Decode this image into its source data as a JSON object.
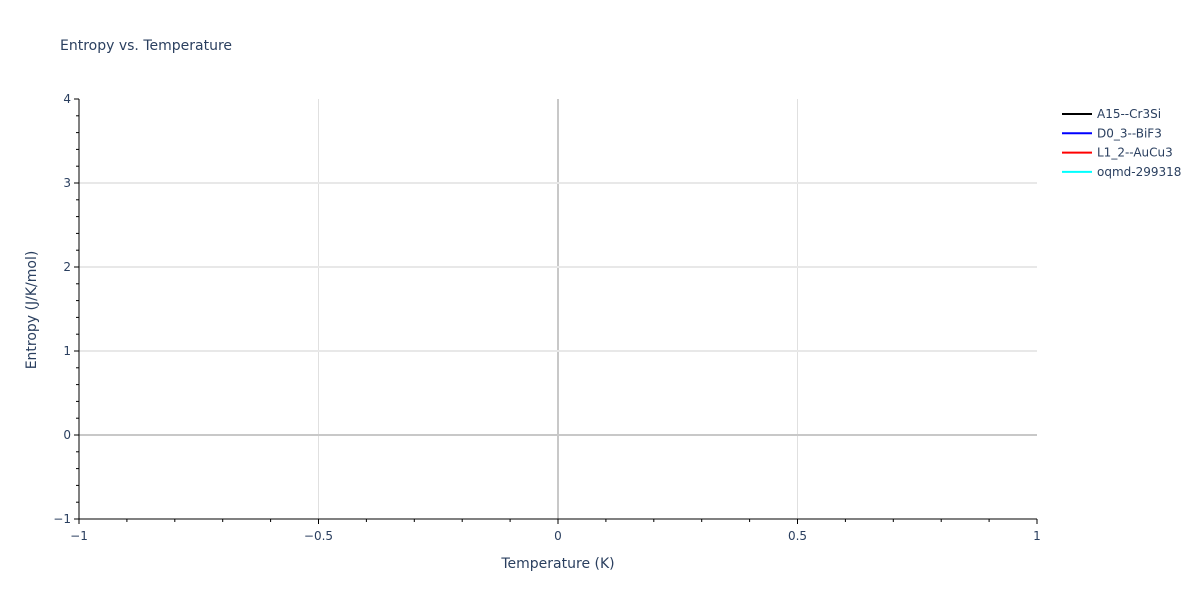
{
  "chart_data": {
    "type": "line",
    "title": "Entropy vs. Temperature",
    "xlabel": "Temperature (K)",
    "ylabel": "Entropy (J/K/mol)",
    "xlim": [
      -1,
      1
    ],
    "ylim": [
      -1,
      4
    ],
    "xticks": [
      -1,
      -0.5,
      0,
      0.5,
      1
    ],
    "xtick_labels": [
      "−1",
      "−0.5",
      "0",
      "0.5",
      "1"
    ],
    "yticks": [
      -1,
      0,
      1,
      2,
      3,
      4
    ],
    "ytick_labels": [
      "−1",
      "0",
      "1",
      "2",
      "3",
      "4"
    ],
    "grid": true,
    "legend_position": "top-right",
    "series": [
      {
        "name": "A15--Cr3Si",
        "color": "#000000",
        "x": [],
        "y": []
      },
      {
        "name": "D0_3--BiF3",
        "color": "#0000ff",
        "x": [],
        "y": []
      },
      {
        "name": "L1_2--AuCu3",
        "color": "#ff0000",
        "x": [],
        "y": []
      },
      {
        "name": "oqmd-299318",
        "color": "#00ffff",
        "x": [],
        "y": []
      }
    ]
  }
}
